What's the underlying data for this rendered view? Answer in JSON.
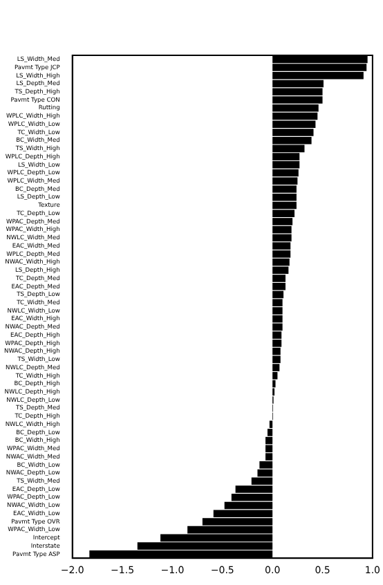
{
  "chart_data": {
    "type": "bar",
    "orientation": "horizontal",
    "color": "#000000",
    "categories": [
      "LS_Width_Med",
      "Pavmt Type JCP",
      "LS_Width_High",
      "LS_Depth_Med",
      "TS_Depth_High",
      "Pavmt Type CON",
      "Rutting",
      "WPLC_Width_High",
      "WPLC_Width_Low",
      "TC_Width_Low",
      "BC_Width_Med",
      "TS_Width_High",
      "WPLC_Depth_High",
      "LS_Width_Low",
      "WPLC_Depth_Low",
      "WPLC_Width_Med",
      "BC_Depth_Med",
      "LS_Depth_Low",
      "Texture",
      "TC_Depth_Low",
      "WPAC_Depth_Med",
      "WPAC_Width_High",
      "NWLC_Width_Med",
      "EAC_Width_Med",
      "WPLC_Depth_Med",
      "NWAC_Width_High",
      "LS_Depth_High",
      "TC_Depth_Med",
      "EAC_Depth_Med",
      "TS_Depth_Low",
      "TC_Width_Med",
      "NWLC_Width_Low",
      "EAC_Width_High",
      "NWAC_Depth_Med",
      "EAC_Depth_High",
      "WPAC_Depth_High",
      "NWAC_Depth_High",
      "TS_Width_Low",
      "NWLC_Depth_Med",
      "TC_Width_High",
      "BC_Depth_High",
      "NWLC_Depth_High",
      "NWLC_Depth_Low",
      "TS_Depth_Med",
      "TC_Depth_High",
      "NWLC_Width_High",
      "BC_Depth_Low",
      "BC_Width_High",
      "WPAC_Width_Med",
      "NWAC_Width_Med",
      "BC_Width_Low",
      "NWAC_Depth_Low",
      "TS_Width_Med",
      "EAC_Depth_Low",
      "WPAC_Depth_Low",
      "NWAC_Width_Low",
      "EAC_Width_Low",
      "Pavmt Type OVR",
      "WPAC_Width_Low",
      "Intercept",
      "Interstate",
      "Pavmt Type ASP"
    ],
    "values": [
      0.95,
      0.94,
      0.91,
      0.51,
      0.5,
      0.5,
      0.46,
      0.45,
      0.43,
      0.41,
      0.39,
      0.32,
      0.27,
      0.27,
      0.26,
      0.25,
      0.24,
      0.24,
      0.24,
      0.22,
      0.2,
      0.19,
      0.19,
      0.18,
      0.18,
      0.17,
      0.16,
      0.13,
      0.13,
      0.11,
      0.1,
      0.1,
      0.1,
      0.1,
      0.09,
      0.09,
      0.08,
      0.08,
      0.07,
      0.05,
      0.03,
      0.02,
      0.01,
      0.005,
      0.005,
      -0.03,
      -0.05,
      -0.07,
      -0.07,
      -0.07,
      -0.13,
      -0.15,
      -0.21,
      -0.37,
      -0.41,
      -0.48,
      -0.59,
      -0.7,
      -0.85,
      -1.12,
      -1.35,
      -1.83
    ],
    "xlim": [
      -2,
      1
    ],
    "xticks": [
      {
        "value": -2,
        "label": "−2.0"
      },
      {
        "value": -1.5,
        "label": "−1.5"
      },
      {
        "value": -1,
        "label": "−1.0"
      },
      {
        "value": -0.5,
        "label": "−0.5"
      },
      {
        "value": 0,
        "label": "0.0"
      },
      {
        "value": 0.5,
        "label": "0.5"
      },
      {
        "value": 1,
        "label": "1.0"
      }
    ]
  }
}
